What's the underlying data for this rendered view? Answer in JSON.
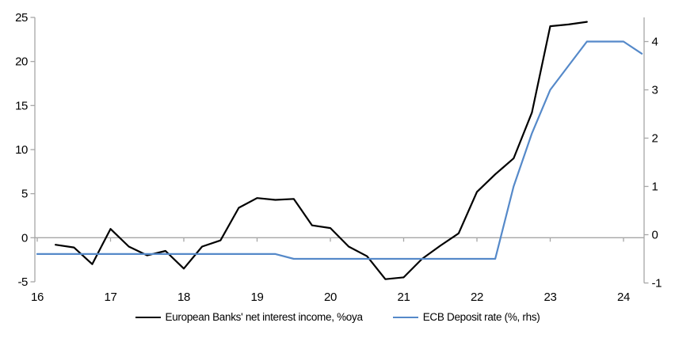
{
  "chart_data": {
    "type": "line",
    "title": "",
    "x_axis": {
      "min": 16,
      "max": 24.28,
      "ticks": [
        16,
        17,
        18,
        19,
        20,
        21,
        22,
        23,
        24
      ]
    },
    "left_axis": {
      "min": -5,
      "max": 25,
      "ticks": [
        -5,
        0,
        5,
        10,
        15,
        20,
        25
      ]
    },
    "right_axis": {
      "min": -1,
      "max": 4.5,
      "ticks": [
        -1,
        0,
        1,
        2,
        3,
        4
      ]
    },
    "grid": "zero-line-only",
    "legend_position": "bottom-center",
    "series": [
      {
        "name": "European Banks' net interest income, %oya",
        "axis": "left",
        "color": "#000000",
        "points": [
          [
            16.25,
            -0.8
          ],
          [
            16.5,
            -1.1
          ],
          [
            16.75,
            -3.0
          ],
          [
            17.0,
            1.0
          ],
          [
            17.25,
            -1.0
          ],
          [
            17.5,
            -2.0
          ],
          [
            17.75,
            -1.5
          ],
          [
            18.0,
            -3.5
          ],
          [
            18.25,
            -1.0
          ],
          [
            18.5,
            -0.3
          ],
          [
            18.75,
            3.4
          ],
          [
            19.0,
            4.5
          ],
          [
            19.25,
            4.3
          ],
          [
            19.5,
            4.4
          ],
          [
            19.75,
            1.4
          ],
          [
            20.0,
            1.1
          ],
          [
            20.25,
            -1.0
          ],
          [
            20.5,
            -2.1
          ],
          [
            20.75,
            -4.7
          ],
          [
            21.0,
            -4.5
          ],
          [
            21.25,
            -2.4
          ],
          [
            21.5,
            -0.9
          ],
          [
            21.75,
            0.5
          ],
          [
            22.0,
            5.2
          ],
          [
            22.25,
            7.2
          ],
          [
            22.5,
            9.0
          ],
          [
            22.75,
            14.2
          ],
          [
            23.0,
            24.0
          ],
          [
            23.25,
            24.2
          ],
          [
            23.5,
            24.5
          ]
        ]
      },
      {
        "name": "ECB Deposit rate (%, rhs)",
        "axis": "right",
        "color": "#5589C9",
        "points": [
          [
            16.0,
            -0.4
          ],
          [
            19.25,
            -0.4
          ],
          [
            19.5,
            -0.5
          ],
          [
            22.25,
            -0.5
          ],
          [
            22.5,
            1.0
          ],
          [
            22.75,
            2.1
          ],
          [
            23.0,
            3.0
          ],
          [
            23.25,
            3.5
          ],
          [
            23.5,
            4.0
          ],
          [
            24.0,
            4.0
          ],
          [
            24.25,
            3.75
          ]
        ]
      }
    ]
  },
  "colors": {
    "axis": "#A6A6A6",
    "text": "#000000",
    "background": "#FFFFFF"
  }
}
